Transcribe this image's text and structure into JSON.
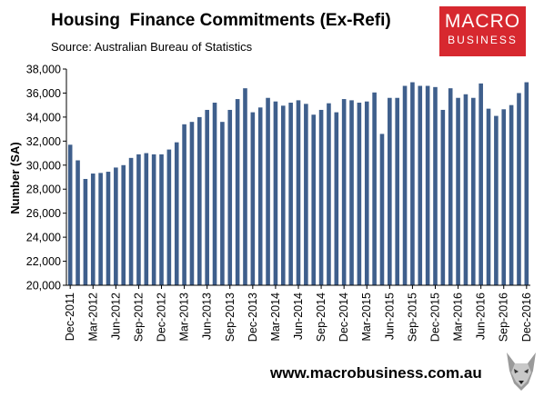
{
  "header": {
    "title": "Housing  Finance Commitments (Ex-Refi)",
    "subtitle": "Source: Australian Bureau of Statistics"
  },
  "logo": {
    "line1": "MACRO",
    "line2": "BUSINESS",
    "color": "#d7282f"
  },
  "footer": {
    "url": "www.macrobusiness.com.au"
  },
  "chart_data": {
    "type": "bar",
    "ylabel": "Number (SA)",
    "ylim": [
      20000,
      38000
    ],
    "yticks": [
      20000,
      22000,
      24000,
      26000,
      28000,
      30000,
      32000,
      34000,
      36000,
      38000
    ],
    "ytick_labels": [
      "20,000",
      "22,000",
      "24,000",
      "26,000",
      "28,000",
      "30,000",
      "32,000",
      "34,000",
      "36,000",
      "38,000"
    ],
    "grid": false,
    "bar_color": "#3f5f8c",
    "categories": [
      "Dec-2011",
      "Jan-2012",
      "Feb-2012",
      "Mar-2012",
      "Apr-2012",
      "May-2012",
      "Jun-2012",
      "Jul-2012",
      "Aug-2012",
      "Sep-2012",
      "Oct-2012",
      "Nov-2012",
      "Dec-2012",
      "Jan-2013",
      "Feb-2013",
      "Mar-2013",
      "Apr-2013",
      "May-2013",
      "Jun-2013",
      "Jul-2013",
      "Aug-2013",
      "Sep-2013",
      "Oct-2013",
      "Nov-2013",
      "Dec-2013",
      "Jan-2014",
      "Feb-2014",
      "Mar-2014",
      "Apr-2014",
      "May-2014",
      "Jun-2014",
      "Jul-2014",
      "Aug-2014",
      "Sep-2014",
      "Oct-2014",
      "Nov-2014",
      "Dec-2014",
      "Jan-2015",
      "Feb-2015",
      "Mar-2015",
      "Apr-2015",
      "May-2015",
      "Jun-2015",
      "Jul-2015",
      "Aug-2015",
      "Sep-2015",
      "Oct-2015",
      "Nov-2015",
      "Dec-2015",
      "Jan-2016",
      "Feb-2016",
      "Mar-2016",
      "Apr-2016",
      "May-2016",
      "Jun-2016",
      "Jul-2016",
      "Aug-2016",
      "Sep-2016",
      "Oct-2016",
      "Nov-2016",
      "Dec-2016"
    ],
    "tick_labels": [
      "Dec-2011",
      "Mar-2012",
      "Jun-2012",
      "Sep-2012",
      "Dec-2012",
      "Mar-2013",
      "Jun-2013",
      "Sep-2013",
      "Dec-2013",
      "Mar-2014",
      "Jun-2014",
      "Sep-2014",
      "Dec-2014",
      "Mar-2015",
      "Jun-2015",
      "Sep-2015",
      "Dec-2015",
      "Mar-2016",
      "Jun-2016",
      "Sep-2016",
      "Dec-2016"
    ],
    "values": [
      31700,
      30400,
      28850,
      29300,
      29350,
      29450,
      29800,
      30000,
      30600,
      30900,
      31000,
      30900,
      30900,
      31300,
      31900,
      33400,
      33600,
      34000,
      34600,
      35200,
      33600,
      34600,
      35500,
      36400,
      34400,
      34800,
      35600,
      35300,
      34950,
      35200,
      35400,
      35100,
      34200,
      34600,
      35150,
      34400,
      35500,
      35400,
      35200,
      35300,
      36050,
      32600,
      35600,
      35600,
      36600,
      36900,
      36600,
      36600,
      36500,
      34600,
      36400,
      35600,
      35900,
      35600,
      36800,
      34700,
      34100,
      34650,
      35000,
      36000,
      36900
    ]
  }
}
